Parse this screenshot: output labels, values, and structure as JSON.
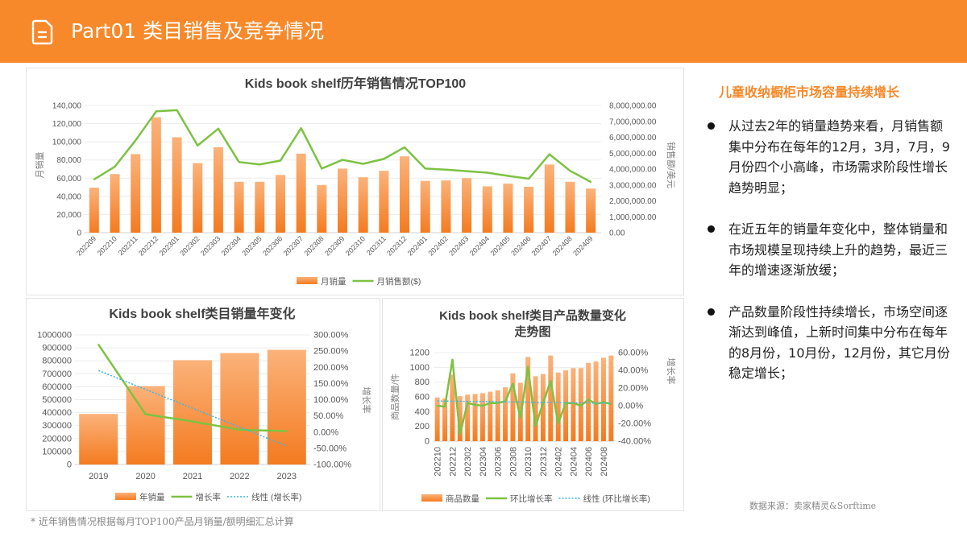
{
  "header": {
    "title": "Part01 类目销售及竞争情况",
    "icon": "document-icon"
  },
  "colors": {
    "accent": "#F7892A",
    "bar_top": "#FBB27A",
    "bar_bottom": "#F47B20",
    "line": "#7DC242",
    "trend": "#3CB5E5"
  },
  "right_panel": {
    "heading": "儿童收纳橱柜市场容量持续增长",
    "bullets": [
      "从过去2年的销量趋势来看，月销售额集中分布在每年的12月，3月，7月，9月份四个小高峰，市场需求阶段性增长趋势明显；",
      "在近五年的销量年变化中，整体销量和市场规模呈现持续上升的趋势，最近三年的增速逐渐放缓；",
      "产品数量阶段性持续增长，市场空间逐渐达到峰值，上新时间集中分布在每年的8月份，10月份，12月份，其它月份稳定增长；"
    ]
  },
  "source": "数据来源：卖家精灵&Sorftime",
  "footnote": "* 近年销售情况根据每月TOP100产品月销量/额明细汇总计算",
  "chart_data": [
    {
      "type": "bar+line",
      "title": "Kids book shelf历年销售情况TOP100",
      "ylabel": "月销量",
      "y2label": "销售额/美元",
      "categories": [
        "202209",
        "202210",
        "202211",
        "202212",
        "202301",
        "202302",
        "202303",
        "202304",
        "202305",
        "202306",
        "202307",
        "202308",
        "202309",
        "202310",
        "202311",
        "202312",
        "202401",
        "202402",
        "202403",
        "202404",
        "202405",
        "202406",
        "202407",
        "202408",
        "202409"
      ],
      "series": [
        {
          "name": "月销量",
          "type": "bar",
          "axis": "left",
          "values": [
            49500,
            64500,
            86500,
            127000,
            105000,
            76500,
            94000,
            56000,
            56000,
            63500,
            87000,
            52500,
            70500,
            61000,
            68000,
            84000,
            57000,
            57500,
            60000,
            51000,
            54000,
            50500,
            75000,
            56000,
            48500
          ]
        },
        {
          "name": "月销售额($)",
          "type": "line",
          "axis": "right",
          "values": [
            3350000,
            4150000,
            5800000,
            7630000,
            7700000,
            5480000,
            6540000,
            4440000,
            4290000,
            4530000,
            6570000,
            4030000,
            4580000,
            4330000,
            4640000,
            5370000,
            4030000,
            3960000,
            3870000,
            3770000,
            3570000,
            3390000,
            4930000,
            3890000,
            3190000
          ]
        }
      ],
      "ylim": [
        0,
        140000
      ],
      "y2lim": [
        0,
        8000000
      ],
      "yticks": [
        "0",
        "20,000",
        "40,000",
        "60,000",
        "80,000",
        "100,000",
        "120,000",
        "140,000"
      ],
      "y2ticks": [
        "0.00",
        "1,000,000.00",
        "2,000,000.00",
        "3,000,000.00",
        "4,000,000.00",
        "5,000,000.00",
        "6,000,000.00",
        "7,000,000.00",
        "8,000,000.00"
      ],
      "grid": true,
      "legend": "bottom"
    },
    {
      "type": "bar+line",
      "title": "Kids book shelf类目销量年变化",
      "y2label": "增长率",
      "categories": [
        "2019",
        "2020",
        "2021",
        "2022",
        "2023"
      ],
      "series": [
        {
          "name": "年销量",
          "type": "bar",
          "axis": "left",
          "values": [
            390000,
            605000,
            805000,
            860000,
            885000
          ]
        },
        {
          "name": "增长率",
          "type": "line",
          "axis": "right",
          "values": [
            270,
            55,
            33,
            7,
            3
          ]
        },
        {
          "name": "线性 (增长率)",
          "type": "trend",
          "axis": "right",
          "of": "增长率"
        }
      ],
      "ylim": [
        0,
        1000000
      ],
      "y2lim": [
        -100,
        300
      ],
      "yticks": [
        "0",
        "100000",
        "200000",
        "300000",
        "400000",
        "500000",
        "600000",
        "700000",
        "800000",
        "900000",
        "1000000"
      ],
      "y2ticks": [
        "-100.00%",
        "-50.00%",
        "0.00%",
        "50.00%",
        "100.00%",
        "150.00%",
        "200.00%",
        "250.00%",
        "300.00%"
      ],
      "grid": true,
      "legend": "bottom"
    },
    {
      "type": "bar+line",
      "title": "Kids book shelf类目产品数量变化走势图",
      "ylabel": "商品数量/件",
      "y2label": "增长率",
      "categories": [
        "202210",
        "202211",
        "202212",
        "202301",
        "202302",
        "202303",
        "202304",
        "202305",
        "202306",
        "202307",
        "202308",
        "202309",
        "202310",
        "202311",
        "202312",
        "202401",
        "202402",
        "202403",
        "202404",
        "202405",
        "202406",
        "202407",
        "202408",
        "202409"
      ],
      "x_tick_labels": [
        "202210",
        "202212",
        "202302",
        "202304",
        "202306",
        "202308",
        "202310",
        "202312",
        "202402",
        "202404",
        "202406",
        "202408"
      ],
      "series": [
        {
          "name": "商品数量",
          "type": "bar",
          "axis": "left",
          "values": [
            590,
            580,
            900,
            610,
            630,
            640,
            650,
            670,
            690,
            730,
            920,
            790,
            1140,
            880,
            910,
            1160,
            930,
            960,
            990,
            990,
            1060,
            1080,
            1130,
            1160
          ]
        },
        {
          "name": "环比增长率",
          "type": "line",
          "axis": "right",
          "values": [
            0,
            -1,
            52,
            -32,
            3,
            1,
            0,
            3,
            3,
            5,
            25,
            -14,
            44,
            -23,
            3,
            28,
            -20,
            3,
            3,
            0,
            7,
            2,
            4,
            2
          ]
        },
        {
          "name": "线性 (环比增长率)",
          "type": "trend",
          "axis": "right",
          "of": "环比增长率"
        }
      ],
      "ylim": [
        0,
        1200
      ],
      "y2lim": [
        -40,
        60
      ],
      "yticks": [
        "0",
        "200",
        "400",
        "600",
        "800",
        "1000",
        "1200"
      ],
      "y2ticks": [
        "-40.00%",
        "-20.00%",
        "0.00%",
        "20.00%",
        "40.00%",
        "60.00%"
      ],
      "grid": true,
      "legend": "bottom"
    }
  ]
}
